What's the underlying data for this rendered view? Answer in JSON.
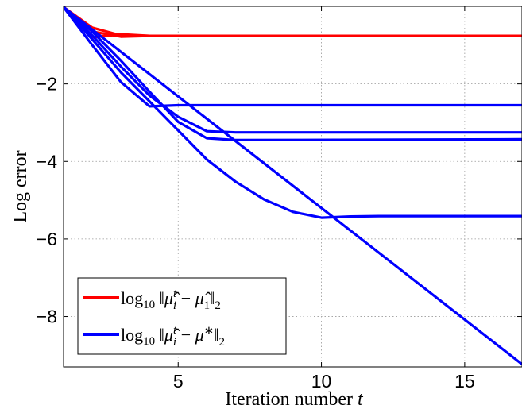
{
  "chart_data": {
    "type": "line",
    "xlabel": "Iteration number t",
    "ylabel": "Log error",
    "xlim": [
      1,
      17
    ],
    "ylim": [
      -9.3,
      0
    ],
    "xticks": [
      5,
      10,
      15
    ],
    "yticks": [
      -2,
      -4,
      -6,
      -8
    ],
    "grid": true,
    "legend_position": "bottom-left",
    "legend": [
      {
        "label": "log10 ||μ̂_i^t − μ̂_1||_2",
        "color": "#ff0000"
      },
      {
        "label": "log10 ||μ̂_i^t − μ*||_2",
        "color": "#0000ff"
      }
    ],
    "series": [
      {
        "group": 0,
        "color": "#ff0000",
        "x": [
          1,
          2,
          3,
          4,
          17
        ],
        "y": [
          -0.02,
          -0.55,
          -0.75,
          -0.76,
          -0.76
        ]
      },
      {
        "group": 0,
        "color": "#ff0000",
        "x": [
          1,
          2,
          3,
          4,
          17
        ],
        "y": [
          -0.02,
          -0.65,
          -0.78,
          -0.76,
          -0.76
        ]
      },
      {
        "group": 0,
        "color": "#ff0000",
        "x": [
          1,
          2,
          3,
          4,
          17
        ],
        "y": [
          -0.02,
          -0.8,
          -0.72,
          -0.76,
          -0.76
        ]
      },
      {
        "group": 1,
        "color": "#0000ff",
        "x": [
          1,
          2,
          3,
          4,
          5,
          6,
          17
        ],
        "y": [
          -0.02,
          -1.0,
          -1.95,
          -2.58,
          -2.55,
          -2.55,
          -2.55
        ]
      },
      {
        "group": 1,
        "color": "#0000ff",
        "x": [
          1,
          2,
          3,
          4,
          5,
          6,
          7,
          17
        ],
        "y": [
          -0.02,
          -0.75,
          -1.55,
          -2.3,
          -2.85,
          -3.22,
          -3.25,
          -3.25
        ]
      },
      {
        "group": 1,
        "color": "#0000ff",
        "x": [
          1,
          2,
          3,
          4,
          5,
          6,
          7,
          17
        ],
        "y": [
          -0.02,
          -0.65,
          -1.4,
          -2.2,
          -2.98,
          -3.4,
          -3.45,
          -3.43
        ]
      },
      {
        "group": 1,
        "color": "#0000ff",
        "x": [
          1,
          2,
          3,
          4,
          5,
          6,
          7,
          8,
          9,
          10,
          11,
          12,
          17
        ],
        "y": [
          -0.02,
          -0.85,
          -1.7,
          -2.45,
          -3.2,
          -3.95,
          -4.52,
          -4.98,
          -5.3,
          -5.45,
          -5.42,
          -5.41,
          -5.41
        ]
      },
      {
        "group": 1,
        "color": "#0000ff",
        "x": [
          1,
          17
        ],
        "y": [
          -0.02,
          -9.23
        ]
      }
    ]
  }
}
